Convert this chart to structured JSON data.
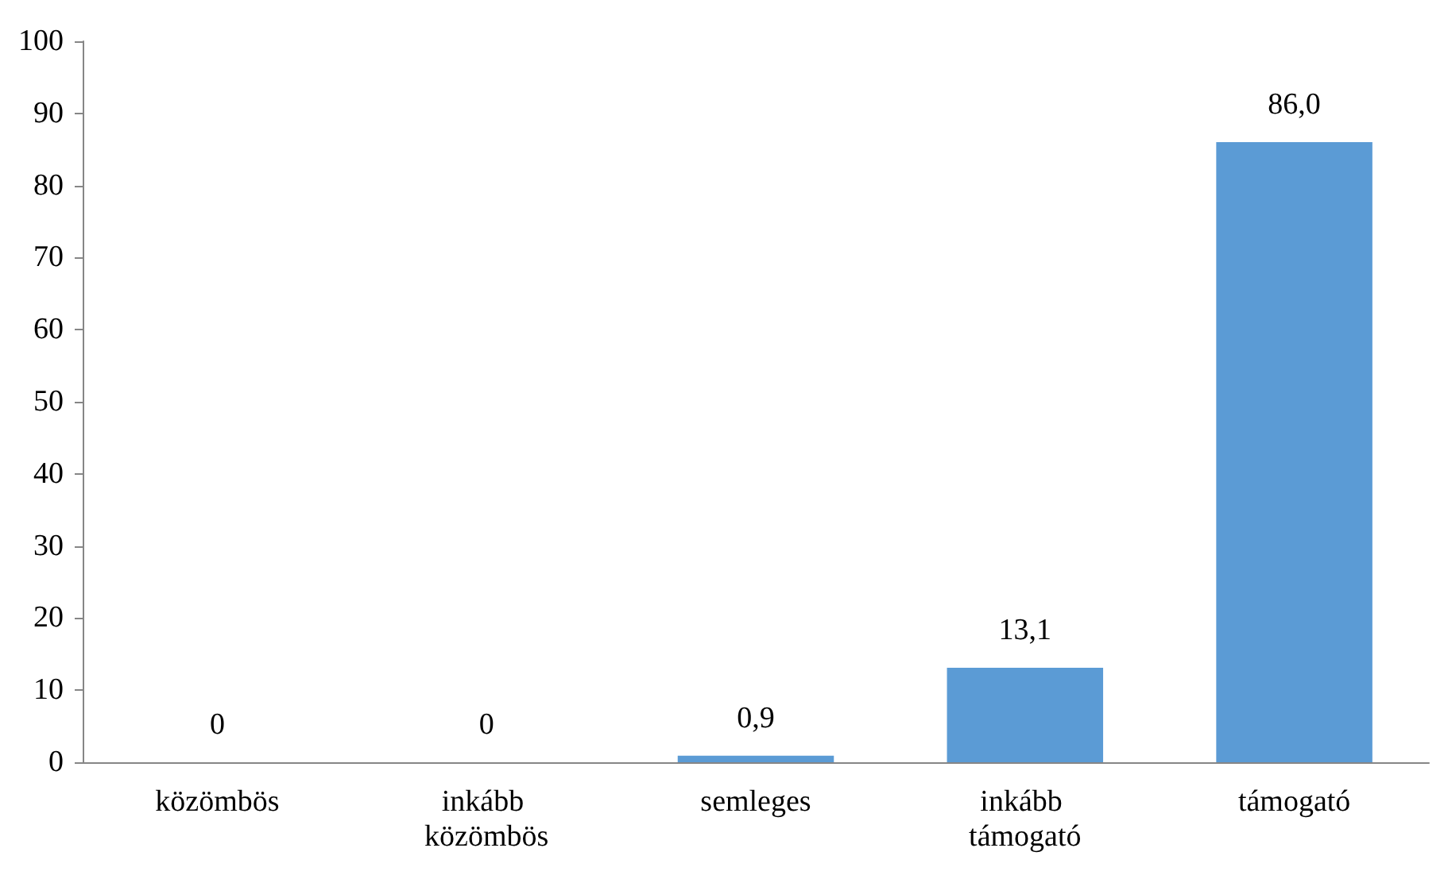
{
  "chart_data": {
    "type": "bar",
    "categories": [
      "közömbös",
      "inkább közömbös",
      "semleges",
      "inkább támogató",
      "támogató"
    ],
    "values": [
      0,
      0,
      0.9,
      13.1,
      86.0
    ],
    "value_labels": [
      "0",
      "0",
      "0,9",
      "13,1",
      "86,0"
    ],
    "color": "#5b9bd5",
    "ylim": [
      0,
      100
    ],
    "yticks": [
      0,
      10,
      20,
      30,
      40,
      50,
      60,
      70,
      80,
      90,
      100
    ]
  }
}
